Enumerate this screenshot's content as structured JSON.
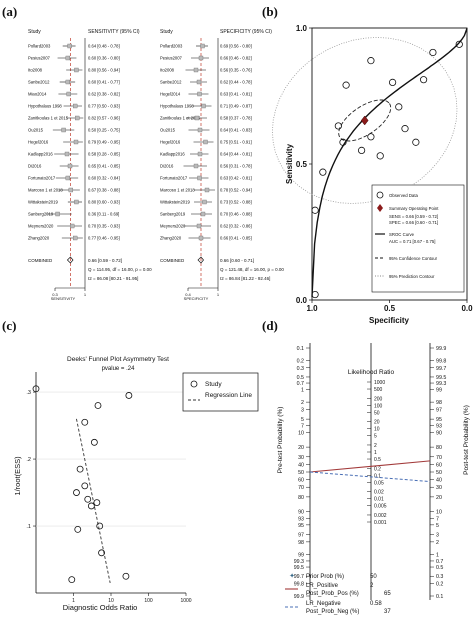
{
  "chart_data": [
    {
      "panel": "(a)",
      "type": "table",
      "forest_plots": [
        {
          "header_study": "Study",
          "header_metric": "SENSITIVITY (95% CI)",
          "studies": [
            {
              "name": "Pollard2003",
              "value": 0.64,
              "lo": 0.48,
              "hi": 0.78,
              "label": "0.64 [0.48 - 0.78]"
            },
            {
              "name": "Pesius2007",
              "value": 0.6,
              "lo": 0.36,
              "hi": 0.8,
              "label": "0.60 [0.36 - 0.80]"
            },
            {
              "name": "Ito2008",
              "value": 0.8,
              "lo": 0.56,
              "hi": 0.94,
              "label": "0.80 [0.56 - 0.94]"
            },
            {
              "name": "Sanbe2012",
              "value": 0.6,
              "lo": 0.41,
              "hi": 0.77,
              "label": "0.60 [0.41 - 0.77]"
            },
            {
              "name": "Miao2014",
              "value": 0.62,
              "lo": 0.38,
              "hi": 0.82,
              "label": "0.62 [0.38 - 0.82]"
            },
            {
              "name": "Hypothalaus 1998",
              "value": 0.77,
              "lo": 0.5,
              "hi": 0.93,
              "label": "0.77 [0.50 - 0.93]"
            },
            {
              "name": "Zanitkoulas 1 et 2015",
              "value": 0.82,
              "lo": 0.57,
              "hi": 0.96,
              "label": "0.82 [0.57 - 0.96]"
            },
            {
              "name": "Ou2015",
              "value": 0.5,
              "lo": 0.25,
              "hi": 0.75,
              "label": "0.50 [0.25 - 0.75]"
            },
            {
              "name": "Hegel2016",
              "value": 0.79,
              "lo": 0.49,
              "hi": 0.95,
              "label": "0.79 [0.49 - 0.95]"
            },
            {
              "name": "Kadlapp2016",
              "value": 0.58,
              "lo": 0.28,
              "hi": 0.85,
              "label": "0.58 [0.28 - 0.85]"
            },
            {
              "name": "Di2016",
              "value": 0.65,
              "lo": 0.41,
              "hi": 0.85,
              "label": "0.65 [0.41 - 0.85]"
            },
            {
              "name": "Fortunato2017",
              "value": 0.6,
              "lo": 0.32,
              "hi": 0.84,
              "label": "0.60 [0.32 - 0.84]"
            },
            {
              "name": "Marcoso 1 et 2018",
              "value": 0.67,
              "lo": 0.38,
              "hi": 0.88,
              "label": "0.67 [0.38 - 0.88]"
            },
            {
              "name": "Wittakstein2019",
              "value": 0.8,
              "lo": 0.6,
              "hi": 0.93,
              "label": "0.80 [0.60 - 0.93]"
            },
            {
              "name": "Sanberg2019",
              "value": 0.36,
              "lo": 0.11,
              "hi": 0.69,
              "label": "0.36 [0.11 - 0.69]"
            },
            {
              "name": "Meyners2020",
              "value": 0.7,
              "lo": 0.35,
              "hi": 0.93,
              "label": "0.70 [0.35 - 0.93]"
            },
            {
              "name": "Zhang2020",
              "value": 0.77,
              "lo": 0.46,
              "hi": 0.95,
              "label": "0.77 [0.46 - 0.95]"
            }
          ],
          "combined": {
            "name": "COMBINED",
            "value": 0.66,
            "lo": 0.59,
            "hi": 0.72,
            "label": "0.66 [0.59 - 0.72]"
          },
          "stats": [
            "Q = 114.95, df = 16.00, p = 0.00",
            "I2 = 86.08 [80.21 - 91.95]"
          ],
          "xaxis_ticks": [
            {
              "v": 0.3,
              "label": "0.3"
            },
            {
              "v": 1.0,
              "label": "1"
            }
          ],
          "xlabel": "SENSITIVITY",
          "xlim": [
            0.3,
            1.0
          ],
          "dashed_at": 0.66
        },
        {
          "header_study": "Study",
          "header_metric": "SPECIFICITY (95% CI)",
          "studies": [
            {
              "name": "Pollard2003",
              "value": 0.69,
              "lo": 0.56,
              "hi": 0.8,
              "label": "0.69 [0.56 - 0.80]"
            },
            {
              "name": "Pesius2007",
              "value": 0.66,
              "lo": 0.46,
              "hi": 0.82,
              "label": "0.66 [0.46 - 0.82]"
            },
            {
              "name": "Ito2008",
              "value": 0.56,
              "lo": 0.35,
              "hi": 0.76,
              "label": "0.56 [0.35 - 0.76]"
            },
            {
              "name": "Sanbe2012",
              "value": 0.62,
              "lo": 0.44,
              "hi": 0.78,
              "label": "0.62 [0.44 - 0.78]"
            },
            {
              "name": "Hegel2014",
              "value": 0.63,
              "lo": 0.41,
              "hi": 0.81,
              "label": "0.63 [0.41 - 0.81]"
            },
            {
              "name": "Hypothalaus 1998",
              "value": 0.71,
              "lo": 0.49,
              "hi": 0.87,
              "label": "0.71 [0.49 - 0.87]"
            },
            {
              "name": "Zanitkoulas 1 et 2015",
              "value": 0.58,
              "lo": 0.37,
              "hi": 0.78,
              "label": "0.58 [0.37 - 0.78]"
            },
            {
              "name": "Ou2015",
              "value": 0.64,
              "lo": 0.41,
              "hi": 0.83,
              "label": "0.64 [0.41 - 0.83]"
            },
            {
              "name": "Hegel2016",
              "value": 0.75,
              "lo": 0.51,
              "hi": 0.91,
              "label": "0.75 [0.51 - 0.91]"
            },
            {
              "name": "Kadlapp2016",
              "value": 0.64,
              "lo": 0.44,
              "hi": 0.81,
              "label": "0.64 [0.44 - 0.81]"
            },
            {
              "name": "Di2016",
              "value": 0.56,
              "lo": 0.31,
              "hi": 0.78,
              "label": "0.56 [0.31 - 0.78]"
            },
            {
              "name": "Fortunato2017",
              "value": 0.63,
              "lo": 0.42,
              "hi": 0.81,
              "label": "0.63 [0.42 - 0.81]"
            },
            {
              "name": "Marcoso 1 et 2018",
              "value": 0.78,
              "lo": 0.52,
              "hi": 0.94,
              "label": "0.78 [0.52 - 0.94]"
            },
            {
              "name": "Wittakstein2019",
              "value": 0.73,
              "lo": 0.52,
              "hi": 0.88,
              "label": "0.73 [0.52 - 0.88]"
            },
            {
              "name": "Sanberg2019",
              "value": 0.7,
              "lo": 0.46,
              "hi": 0.88,
              "label": "0.70 [0.46 - 0.88]"
            },
            {
              "name": "Meyners2020",
              "value": 0.62,
              "lo": 0.32,
              "hi": 0.86,
              "label": "0.62 [0.32 - 0.86]"
            },
            {
              "name": "Zhang2020",
              "value": 0.66,
              "lo": 0.41,
              "hi": 0.85,
              "label": "0.66 [0.41 - 0.85]"
            }
          ],
          "combined": {
            "name": "COMBINED",
            "value": 0.66,
            "lo": 0.6,
            "hi": 0.71,
            "label": "0.66 [0.60 - 0.71]"
          },
          "stats": [
            "Q = 121.48, df = 16.00, p = 0.00",
            "I2 = 86.84 [81.22 - 92.46]"
          ],
          "xaxis_ticks": [
            {
              "v": 0.4,
              "label": "0.4"
            },
            {
              "v": 1.0,
              "label": "1"
            }
          ],
          "xlabel": "SPECIFICITY",
          "xlim": [
            0.4,
            1.0
          ],
          "dashed_at": 0.66
        }
      ]
    },
    {
      "panel": "(b)",
      "type": "scatter",
      "xlabel": "Specificity",
      "ylabel": "Sensitivity",
      "x_ticks": [
        {
          "v": 1.0,
          "label": "1.0"
        },
        {
          "v": 0.5,
          "label": "0.5"
        },
        {
          "v": 0.0,
          "label": "0.0"
        }
      ],
      "y_ticks": [
        {
          "v": 0.0,
          "label": "0.0"
        },
        {
          "v": 0.5,
          "label": "0.5"
        },
        {
          "v": 1.0,
          "label": "1.0"
        }
      ],
      "xlim": [
        1.0,
        0.0
      ],
      "ylim": [
        0.0,
        1.0
      ],
      "points": [
        {
          "x": 0.98,
          "y": 0.33
        },
        {
          "x": 0.93,
          "y": 0.47
        },
        {
          "x": 0.83,
          "y": 0.64
        },
        {
          "x": 0.78,
          "y": 0.79
        },
        {
          "x": 0.62,
          "y": 0.88
        },
        {
          "x": 0.8,
          "y": 0.58
        },
        {
          "x": 0.68,
          "y": 0.55
        },
        {
          "x": 0.62,
          "y": 0.6
        },
        {
          "x": 0.56,
          "y": 0.53
        },
        {
          "x": 0.48,
          "y": 0.8
        },
        {
          "x": 0.44,
          "y": 0.71
        },
        {
          "x": 0.4,
          "y": 0.63
        },
        {
          "x": 0.33,
          "y": 0.58
        },
        {
          "x": 0.28,
          "y": 0.81
        },
        {
          "x": 0.22,
          "y": 0.91
        },
        {
          "x": 0.05,
          "y": 0.94
        },
        {
          "x": 0.45,
          "y": 0.4
        },
        {
          "x": 0.98,
          "y": 0.02
        }
      ],
      "summary_point": {
        "x": 0.66,
        "y": 0.66
      },
      "legend": [
        {
          "kind": "circle",
          "label": "Observed Data"
        },
        {
          "kind": "diamond",
          "label": "Summary Operating Point"
        },
        {
          "kind": "text",
          "label": "SENS = 0.66 [0.59 - 0.72]"
        },
        {
          "kind": "text",
          "label": "SPEC = 0.66 [0.60 - 0.71]"
        },
        {
          "kind": "line",
          "label": "SROC Curve"
        },
        {
          "kind": "text",
          "label": "AUC = 0.71 [0.67 - 0.75]"
        },
        {
          "kind": "dashed",
          "label": "95% Confidence Contour"
        },
        {
          "kind": "dotted",
          "label": "95% Prediction Contour"
        }
      ],
      "legend_placement": "bottom-right",
      "colors": {
        "summary": "#8b1a1a",
        "curve": "#111111",
        "prediction": "#888888"
      }
    },
    {
      "panel": "(c)",
      "type": "scatter",
      "title": "Deeks' Funnel Plot Asymmetry Test",
      "subtitle": "pvalue = .24",
      "xlabel": "Diagnostic Odds Ratio",
      "ylabel": "1/root(ESS)",
      "x_scale": "log",
      "xlim": [
        0.1,
        1000
      ],
      "x_ticks": [
        {
          "v": 1,
          "label": "1"
        },
        {
          "v": 10,
          "label": "10"
        },
        {
          "v": 100,
          "label": "100"
        },
        {
          "v": 1000,
          "label": "1000"
        }
      ],
      "ylim": [
        0.0,
        0.33
      ],
      "y_ticks": [
        {
          "v": 0.1,
          "label": ".1"
        },
        {
          "v": 0.2,
          "label": ".2"
        },
        {
          "v": 0.3,
          "label": ".3"
        }
      ],
      "points": [
        {
          "x": 0.1,
          "y": 0.305
        },
        {
          "x": 0.9,
          "y": 0.02
        },
        {
          "x": 1.3,
          "y": 0.095
        },
        {
          "x": 1.2,
          "y": 0.15
        },
        {
          "x": 2.0,
          "y": 0.16
        },
        {
          "x": 1.5,
          "y": 0.185
        },
        {
          "x": 2.4,
          "y": 0.14
        },
        {
          "x": 3.0,
          "y": 0.13
        },
        {
          "x": 4.2,
          "y": 0.135
        },
        {
          "x": 3.6,
          "y": 0.225
        },
        {
          "x": 2.0,
          "y": 0.255
        },
        {
          "x": 5.0,
          "y": 0.1
        },
        {
          "x": 5.6,
          "y": 0.06
        },
        {
          "x": 4.5,
          "y": 0.28
        },
        {
          "x": 25.0,
          "y": 0.025
        },
        {
          "x": 30.0,
          "y": 0.295
        }
      ],
      "regression": [
        {
          "x": 1.2,
          "y": 0.26
        },
        {
          "x": 9.5,
          "y": 0.015
        }
      ],
      "legend": [
        {
          "kind": "circle",
          "label": "Study"
        },
        {
          "kind": "dashed",
          "label": "Regression Line"
        }
      ],
      "legend_placement": "top-right"
    },
    {
      "panel": "(d)",
      "type": "line",
      "ylabel_left": "Pre-test Probability (%)",
      "ylabel_right": "Post-test Probability (%)",
      "center_title": "Likelihood Ratio",
      "left_ticks": [
        "0.1",
        "0.2",
        "0.3",
        "0.5",
        "0.7",
        "1",
        "2",
        "3",
        "5",
        "7",
        "10",
        "20",
        "30",
        "40",
        "50",
        "60",
        "70",
        "80",
        "90",
        "93",
        "95",
        "97",
        "98",
        "99",
        "99.3",
        "99.5",
        "99.7",
        "99.8",
        "99.9"
      ],
      "right_ticks": [
        "99.9",
        "99.8",
        "99.7",
        "99.5",
        "99.3",
        "99",
        "98",
        "97",
        "95",
        "93",
        "90",
        "80",
        "70",
        "60",
        "50",
        "40",
        "30",
        "20",
        "10",
        "7",
        "5",
        "3",
        "2",
        "1",
        "0.7",
        "0.5",
        "0.3",
        "0.2",
        "0.1"
      ],
      "lr_ticks": [
        "1000",
        "500",
        "200",
        "100",
        "50",
        "20",
        "10",
        "5",
        "2",
        "1",
        "0.5",
        "0.2",
        "0.1",
        "0.05",
        "0.02",
        "0.01",
        "0.005",
        "0.002",
        "0.001"
      ],
      "prior_prob": 50,
      "lr_positive": 2,
      "post_prob_pos": 65,
      "lr_negative": 0.58,
      "post_prob_neg": 37,
      "legend": [
        {
          "kind": "star",
          "key": "Prior Prob (%)",
          "value": "50"
        },
        {
          "kind": "line",
          "key": "LR_Positive",
          "value": "2",
          "sub_key": "Post_Prob_Pos (%)",
          "sub_value": "65"
        },
        {
          "kind": "dashed",
          "key": "LR_Negative",
          "value": "0.58",
          "sub_key": "Post_Prob_Neg (%)",
          "sub_value": "37"
        }
      ],
      "colors": {
        "positive": "#a23a3a",
        "negative": "#4a6fb5",
        "prior": "#3a6b8a"
      }
    }
  ]
}
